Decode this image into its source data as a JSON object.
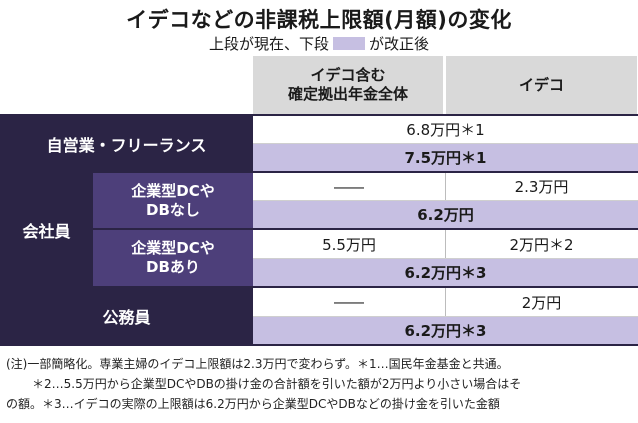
{
  "title": "イデコなどの非課税上限額(月額)の変化",
  "subtitle": {
    "before": "上段が現在、下段",
    "after": "が改正後"
  },
  "colors": {
    "dark_header": "#2b2445",
    "mid_header": "#4d3f7a",
    "revised_row": "#c6bfe2",
    "column_header": "#d9d9d9"
  },
  "chart_data": {
    "type": "table",
    "columns": [
      "イデコ含む\n確定拠出年金全体",
      "イデコ"
    ],
    "rows": [
      {
        "category": "自営業・フリーランス",
        "current": "6.8万円＊1",
        "revised": "7.5万円＊1"
      },
      {
        "category": "会社員",
        "subcategory": "企業型DCや\nDBなし",
        "current": [
          "――",
          "2.3万円"
        ],
        "revised": "6.2万円"
      },
      {
        "category": "会社員",
        "subcategory": "企業型DCや\nDBあり",
        "current": [
          "5.5万円",
          "2万円＊2"
        ],
        "revised": "6.2万円＊3"
      },
      {
        "category": "公務員",
        "current": [
          "――",
          "2万円"
        ],
        "revised": "6.2万円＊3"
      }
    ]
  },
  "table": {
    "col_header_1_line1": "イデコ含む",
    "col_header_1_line2": "確定拠出年金全体",
    "col_header_2": "イデコ",
    "self_employed": "自営業・フリーランス",
    "employee": "会社員",
    "sub_no_dc_line1": "企業型DCや",
    "sub_no_dc_line2": "DBなし",
    "sub_dc_line1": "企業型DCや",
    "sub_dc_line2": "DBあり",
    "civil_servant": "公務員",
    "se_current": "6.8万円＊1",
    "se_revised": "7.5万円＊1",
    "nodc_current_total": "――",
    "nodc_current_ideco": "2.3万円",
    "nodc_revised": "6.2万円",
    "dc_current_total": "5.5万円",
    "dc_current_ideco": "2万円＊2",
    "dc_revised": "6.2万円＊3",
    "cs_current_total": "――",
    "cs_current_ideco": "2万円",
    "cs_revised": "6.2万円＊3"
  },
  "notes": [
    "(注)一部簡略化。専業主婦のイデコ上限額は2.3万円で変わらず。＊1…国民年金基金と共通。",
    "＊2…5.5万円から企業型DCやDBの掛け金の合計額を引いた額が2万円より小さい場合はそ",
    "の額。＊3…イデコの実際の上限額は6.2万円から企業型DCやDBなどの掛け金を引いた金額"
  ]
}
